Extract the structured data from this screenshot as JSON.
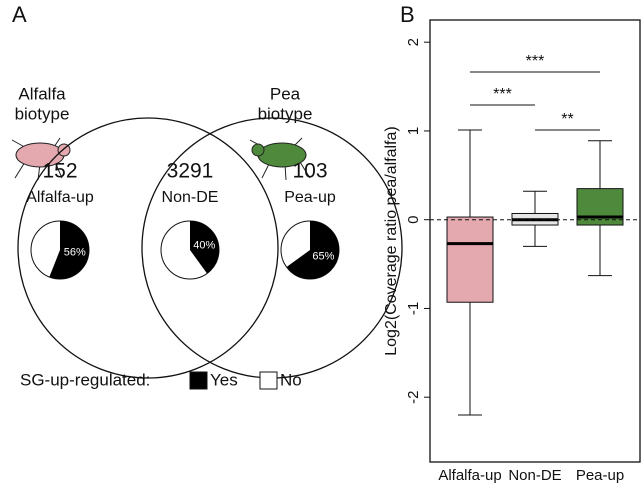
{
  "chart_data": [
    {
      "type": "venn",
      "panel_label": "A",
      "set_labels": [
        [
          "Alfalfa",
          "biotype"
        ],
        [
          "Pea",
          "biotype"
        ]
      ],
      "set_colors": [
        "#e3a9ae",
        "#4f8a3c"
      ],
      "regions": [
        {
          "count": 152,
          "name": "Alfalfa-up",
          "yes_percent": 56,
          "value_label": "56%"
        },
        {
          "count": 3291,
          "name": "Non-DE",
          "yes_percent": 40,
          "value_label": "40%"
        },
        {
          "count": 103,
          "name": "Pea-up",
          "yes_percent": 65,
          "value_label": "65%"
        }
      ],
      "legend_title": "SG-up-regulated:",
      "legend": [
        {
          "name": "Yes",
          "color": "#000000"
        },
        {
          "name": "No",
          "color": "#ffffff"
        }
      ]
    },
    {
      "type": "box",
      "panel_label": "B",
      "ylabel": "Log2(Coverage ratio pea/alfalfa)",
      "categories": [
        "Alfalfa-up",
        "Non-DE",
        "Pea-up"
      ],
      "colors": [
        "#e3a9ae",
        "#e6e6e6",
        "#4f8a3c"
      ],
      "boxes": [
        {
          "whislo": -2.2,
          "q1": -0.93,
          "med": -0.27,
          "q3": 0.03,
          "whishi": 1.01
        },
        {
          "whislo": -0.3,
          "q1": -0.06,
          "med": 0.0,
          "q3": 0.07,
          "whishi": 0.32
        },
        {
          "whislo": -0.63,
          "q1": -0.06,
          "med": 0.03,
          "q3": 0.35,
          "whishi": 0.89
        }
      ],
      "ylim": [
        -2.73,
        2.25
      ],
      "yticks": [
        -2,
        -1,
        0,
        1,
        2
      ],
      "reference_line": 0,
      "comparisons": [
        {
          "from": 0,
          "to": 2,
          "label": "***"
        },
        {
          "from": 0,
          "to": 1,
          "label": "***"
        },
        {
          "from": 1,
          "to": 2,
          "label": "**"
        }
      ]
    }
  ]
}
